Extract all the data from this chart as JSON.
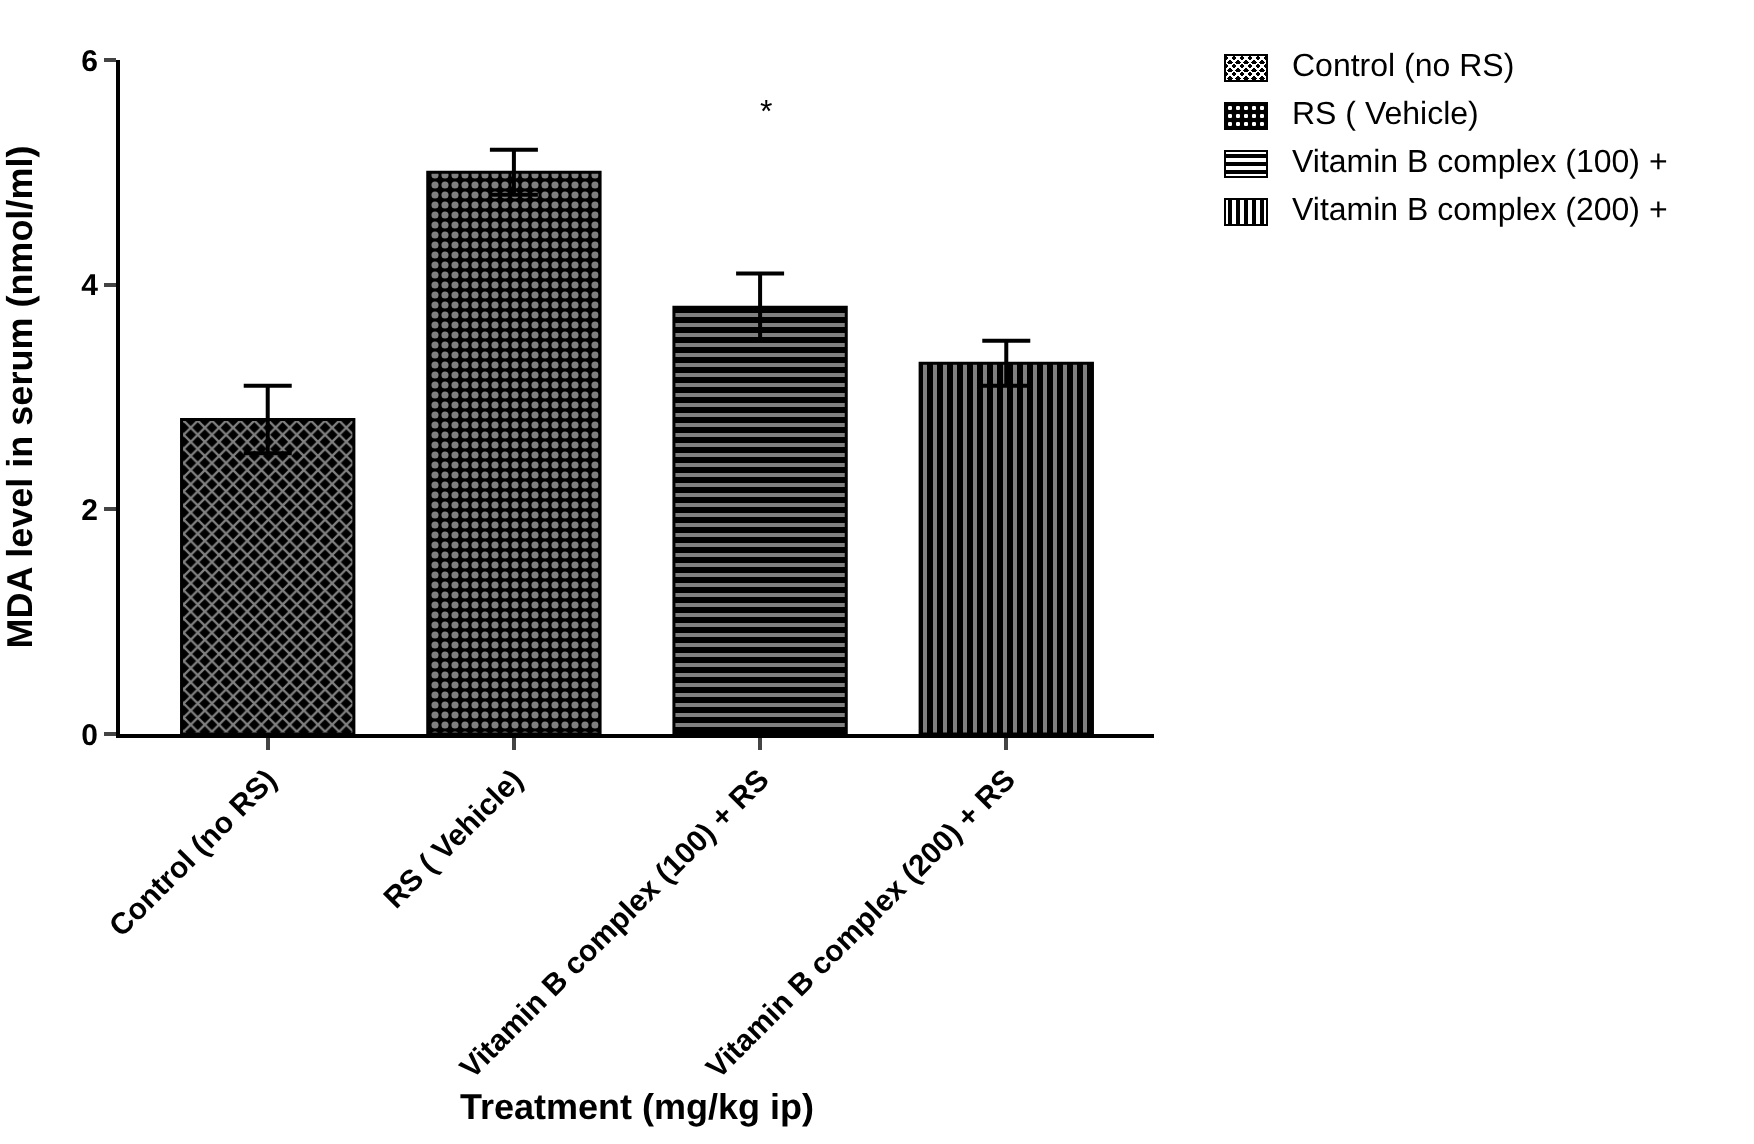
{
  "chart_data": {
    "type": "bar",
    "xlabel": "Treatment (mg/kg ip)",
    "ylabel": "MDA level in serum (nmol/ml)",
    "categories": [
      "Control (no RS)",
      "RS ( Vehicle)",
      "Vitamin B complex (100) + RS",
      "Vitamin B complex (200) + RS"
    ],
    "series": [
      {
        "name": "Control (no RS)",
        "color": "#000000",
        "values": [
          2.8,
          null,
          null,
          null
        ],
        "errors": [
          0.3,
          null,
          null,
          null
        ]
      },
      {
        "name": "RS ( Vehicle)",
        "color": "#000000",
        "values": [
          null,
          5.0,
          null,
          null
        ],
        "errors": [
          null,
          0.2,
          null,
          null
        ]
      },
      {
        "name": "Vitamin B complex (100) +",
        "color": "#000000",
        "values": [
          null,
          null,
          3.8,
          null
        ],
        "errors": [
          null,
          null,
          0.3,
          null
        ]
      },
      {
        "name": "Vitamin B complex (200) +",
        "color": "#000000",
        "values": [
          null,
          null,
          null,
          3.3
        ],
        "errors": [
          null,
          null,
          null,
          0.2
        ]
      }
    ],
    "ylim": [
      0,
      6
    ],
    "yticks": [
      0,
      2,
      4,
      6
    ],
    "grid": false,
    "legend": "top right",
    "annotations": [
      "*"
    ]
  }
}
